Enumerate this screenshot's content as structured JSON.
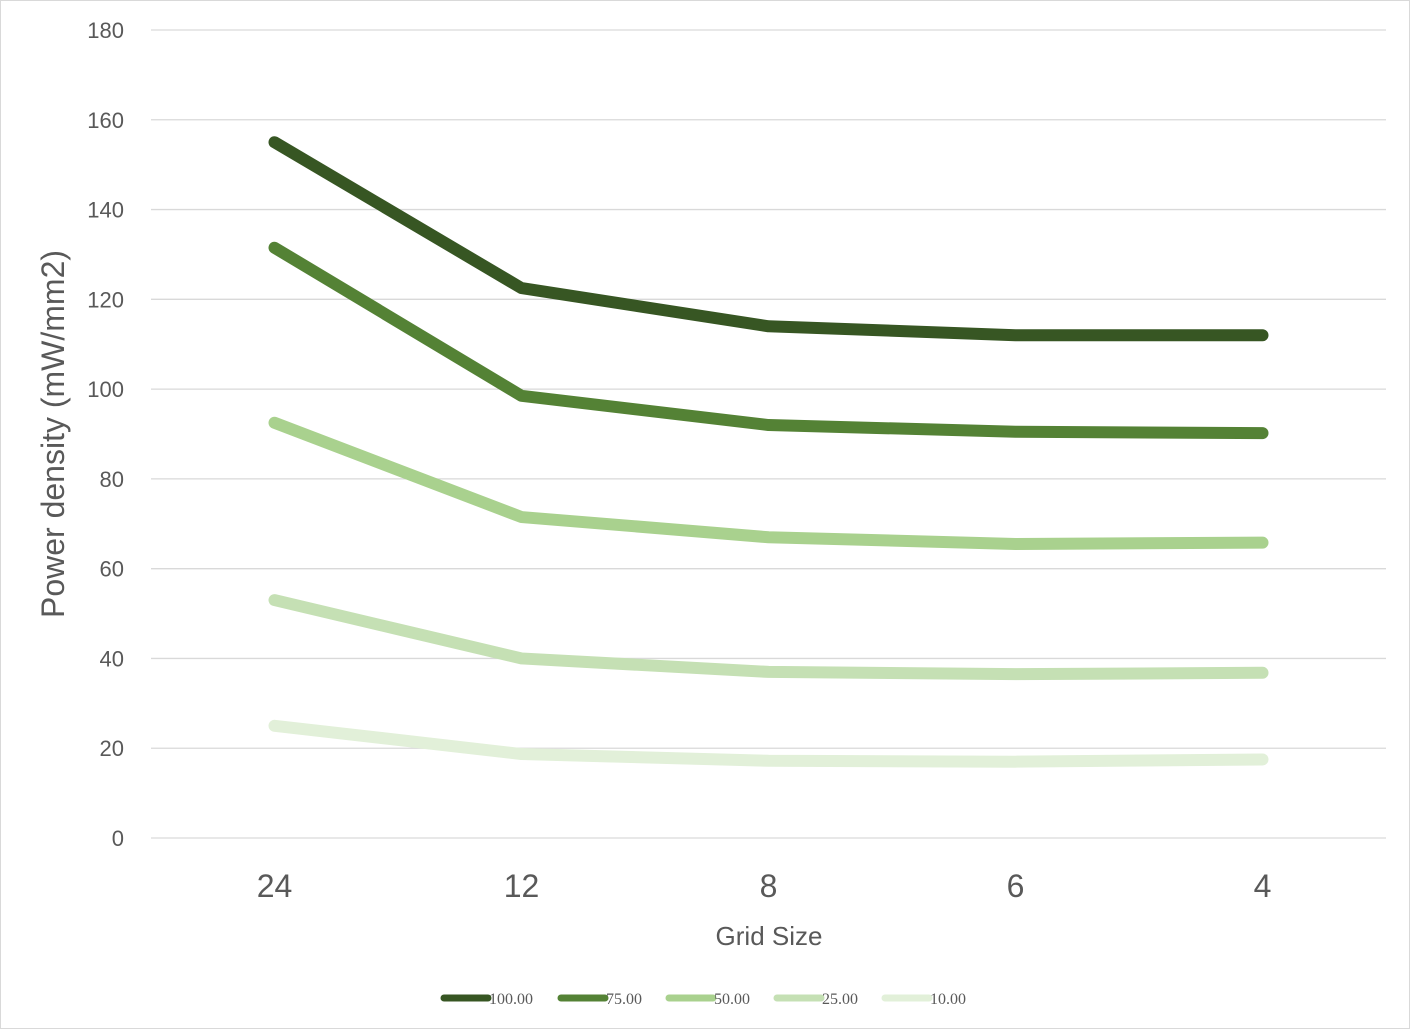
{
  "chart_data": {
    "type": "line",
    "title": "",
    "xlabel": "Grid Size",
    "ylabel": "Power density (mW/mm2)",
    "categories": [
      "24",
      "12",
      "8",
      "6",
      "4"
    ],
    "ylim": [
      0,
      180
    ],
    "yticks": [
      "0",
      "20",
      "40",
      "60",
      "80",
      "100",
      "120",
      "140",
      "160",
      "180"
    ],
    "grid": true,
    "legend_position": "bottom",
    "series": [
      {
        "name": "100.00",
        "color": "#375623",
        "values": [
          155,
          122.5,
          114,
          112,
          112
        ]
      },
      {
        "name": "75.00",
        "color": "#548235",
        "values": [
          131.5,
          98.5,
          92,
          90.5,
          90.2
        ]
      },
      {
        "name": "50.00",
        "color": "#a9d18e",
        "values": [
          92.5,
          71.5,
          67,
          65.5,
          65.8
        ]
      },
      {
        "name": "25.00",
        "color": "#c5e0b4",
        "values": [
          53,
          40,
          37,
          36.5,
          36.8
        ]
      },
      {
        "name": "10.00",
        "color": "#e2f0d9",
        "values": [
          25,
          18.7,
          17.2,
          17,
          17.5
        ]
      }
    ]
  }
}
